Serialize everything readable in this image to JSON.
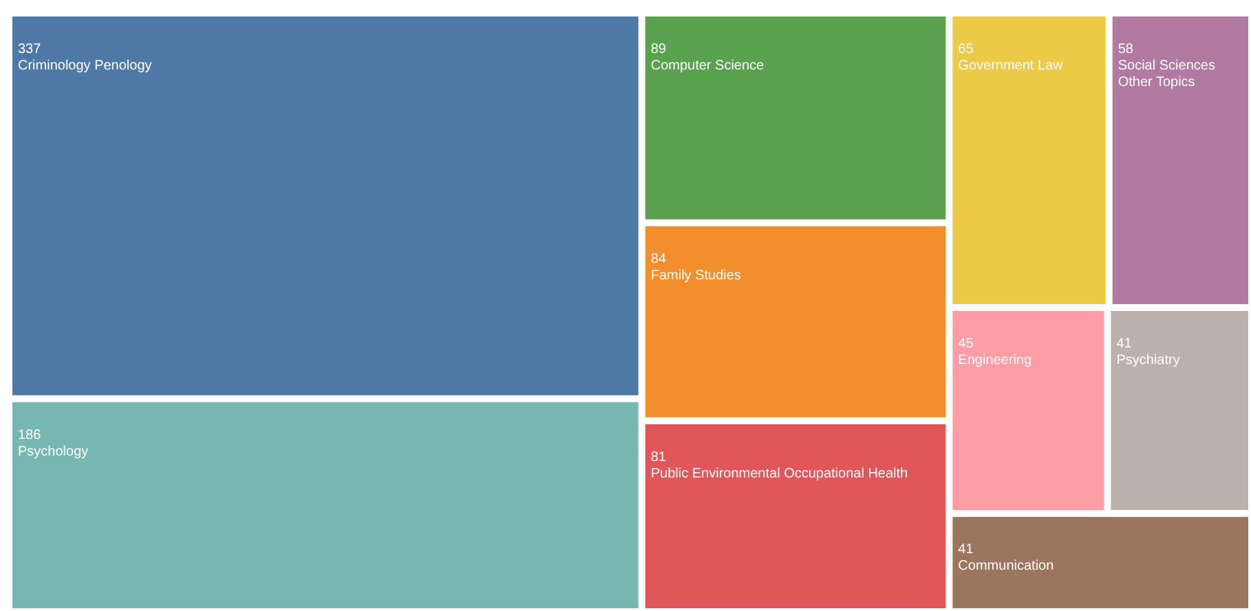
{
  "chart_data": {
    "type": "other",
    "categories": [
      "Criminology Penology",
      "Psychology",
      "Computer Science",
      "Family Studies",
      "Public Environmental Occupational Health",
      "Government Law",
      "Social Sciences Other Topics",
      "Engineering",
      "Communication",
      "Psychiatry"
    ],
    "values": [
      337,
      186,
      89,
      84,
      81,
      65,
      58,
      45,
      41,
      41
    ],
    "colors": [
      "#4e79a7",
      "#76b7b2",
      "#59a14f",
      "#f28e2b",
      "#e15759",
      "#edc948",
      "#b07aa1",
      "#ff9da7",
      "#9c755f",
      "#bab0ac"
    ],
    "data_labels": true
  }
}
